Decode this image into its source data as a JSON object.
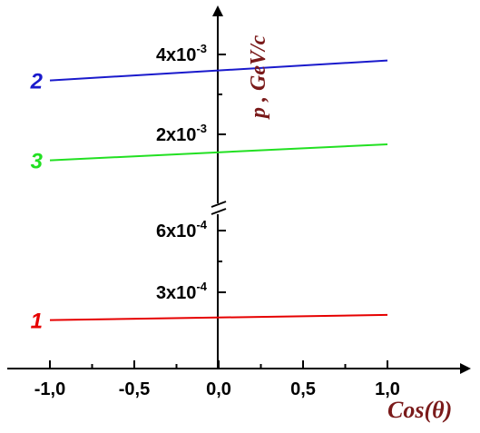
{
  "chart_data": {
    "type": "line",
    "xlabel": "Cos(θ)",
    "ylabel": "p , GeV/c",
    "xlim": [
      -1.0,
      1.0
    ],
    "x_ticks": [
      "-1,0",
      "-0,5",
      "0,0",
      "0,5",
      "1,0"
    ],
    "y_scale": "broken",
    "y_upper_ticks": [
      {
        "base": "2x10",
        "exp": "-3",
        "value": 0.002
      },
      {
        "base": "4x10",
        "exp": "-3",
        "value": 0.004
      }
    ],
    "y_lower_ticks": [
      {
        "base": "3x10",
        "exp": "-4",
        "value": 0.0003
      },
      {
        "base": "6x10",
        "exp": "-4",
        "value": 0.0006
      }
    ],
    "series": [
      {
        "name": "1",
        "color": "#e60000",
        "x": [
          -1.0,
          1.0
        ],
        "y": [
          0.000165,
          0.00019
        ]
      },
      {
        "name": "2",
        "color": "#1a1acc",
        "x": [
          -1.0,
          1.0
        ],
        "y": [
          0.00335,
          0.00385
        ]
      },
      {
        "name": "3",
        "color": "#22e022",
        "x": [
          -1.0,
          1.0
        ],
        "y": [
          0.00135,
          0.00175
        ]
      }
    ]
  }
}
